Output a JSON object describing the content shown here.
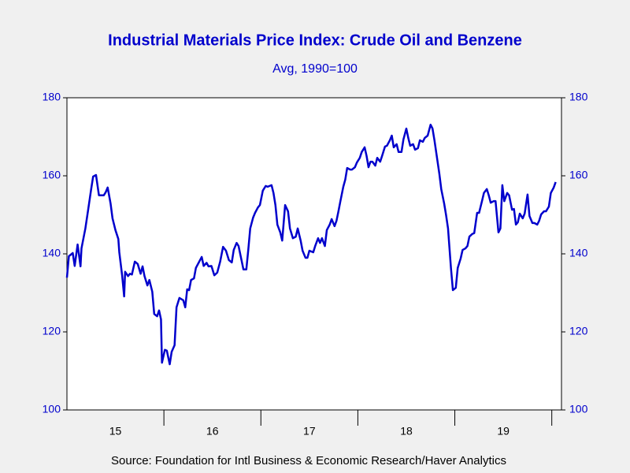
{
  "chart_data": {
    "type": "line",
    "title": "Industrial Materials Price Index: Crude Oil and Benzene",
    "subtitle": "Avg, 1990=100",
    "source": "Source:  Foundation for Intl Business & Economic Research/Haver Analytics",
    "xlim": [
      15,
      20.1
    ],
    "xticks": [
      {
        "value": 15.5,
        "label": "15"
      },
      {
        "value": 16.5,
        "label": "16"
      },
      {
        "value": 17.5,
        "label": "17"
      },
      {
        "value": 18.5,
        "label": "18"
      },
      {
        "value": 19.5,
        "label": "19"
      }
    ],
    "x_boundary_ticks": [
      16,
      17,
      18,
      19,
      20
    ],
    "ylim": [
      100,
      180
    ],
    "yticks": [
      100,
      120,
      140,
      160,
      180
    ],
    "mirror_y_axis": true,
    "x": [
      15.0,
      15.02,
      15.06,
      15.08,
      15.11,
      15.14,
      15.15,
      15.19,
      15.22,
      15.25,
      15.27,
      15.3,
      15.33,
      15.35,
      15.38,
      15.4,
      15.42,
      15.45,
      15.47,
      15.5,
      15.53,
      15.54,
      15.57,
      15.59,
      15.6,
      15.63,
      15.65,
      15.67,
      15.7,
      15.73,
      15.76,
      15.78,
      15.8,
      15.83,
      15.85,
      15.88,
      15.9,
      15.93,
      15.95,
      15.97,
      15.98,
      16.01,
      16.03,
      16.06,
      16.08,
      16.11,
      16.13,
      16.16,
      16.2,
      16.22,
      16.24,
      16.26,
      16.28,
      16.31,
      16.33,
      16.36,
      16.39,
      16.41,
      16.44,
      16.46,
      16.49,
      16.52,
      16.55,
      16.58,
      16.61,
      16.64,
      16.67,
      16.7,
      16.72,
      16.75,
      16.77,
      16.8,
      16.82,
      16.85,
      16.87,
      16.89,
      16.92,
      16.94,
      16.97,
      16.99,
      17.02,
      17.05,
      17.07,
      17.11,
      17.13,
      17.15,
      17.17,
      17.2,
      17.22,
      17.25,
      17.28,
      17.3,
      17.33,
      17.36,
      17.38,
      17.41,
      17.43,
      17.46,
      17.48,
      17.5,
      17.54,
      17.56,
      17.59,
      17.61,
      17.63,
      17.66,
      17.68,
      17.71,
      17.73,
      17.76,
      17.78,
      17.8,
      17.82,
      17.85,
      17.87,
      17.89,
      17.92,
      17.94,
      17.97,
      17.99,
      18.02,
      18.04,
      18.07,
      18.09,
      18.11,
      18.13,
      18.15,
      18.18,
      18.2,
      18.23,
      18.25,
      18.28,
      18.3,
      18.33,
      18.35,
      18.37,
      18.4,
      18.42,
      18.45,
      18.47,
      18.5,
      18.52,
      18.54,
      18.57,
      18.59,
      18.62,
      18.64,
      18.67,
      18.69,
      18.72,
      18.75,
      18.77,
      18.79,
      18.81,
      18.84,
      18.86,
      18.89,
      18.91,
      18.93,
      18.96,
      18.98,
      19.01,
      19.03,
      19.06,
      19.08,
      19.11,
      19.13,
      19.15,
      19.18,
      19.2,
      19.23,
      19.25,
      19.28,
      19.3,
      19.33,
      19.35,
      19.37,
      19.4,
      19.42,
      19.45,
      19.47,
      19.49,
      19.51,
      19.54,
      19.56,
      19.59,
      19.61,
      19.63,
      19.65,
      19.67,
      19.7,
      19.72,
      19.75,
      19.77,
      19.8,
      19.82,
      19.85,
      19.87,
      19.89,
      19.92,
      19.94,
      19.97,
      19.99,
      20.02,
      20.04
    ],
    "series": [
      {
        "color": "#0000cc",
        "values": [
          133.9,
          139.4,
          140.2,
          136.9,
          142.4,
          136.8,
          141.4,
          146.5,
          151.5,
          156.6,
          159.8,
          160.2,
          155.0,
          155.0,
          155.0,
          155.8,
          157.0,
          152.9,
          149.1,
          146.1,
          143.8,
          140.4,
          134.3,
          129.1,
          135.4,
          134.3,
          134.9,
          134.7,
          138.0,
          137.4,
          134.9,
          136.8,
          134.3,
          131.9,
          133.3,
          130.3,
          124.6,
          124.0,
          125.5,
          123.2,
          112.1,
          115.4,
          115.2,
          111.7,
          114.9,
          116.6,
          126.3,
          128.7,
          128.1,
          126.3,
          130.9,
          130.7,
          133.3,
          133.7,
          136.4,
          137.8,
          139.2,
          136.9,
          137.7,
          136.8,
          136.9,
          134.5,
          135.2,
          138.0,
          141.8,
          140.8,
          138.4,
          137.8,
          141.0,
          142.8,
          142.0,
          138.4,
          136.0,
          136.0,
          141.0,
          146.5,
          149.3,
          150.5,
          151.9,
          152.5,
          156.2,
          157.4,
          157.2,
          157.6,
          155.6,
          152.5,
          147.5,
          145.5,
          143.4,
          152.5,
          150.9,
          146.5,
          144.0,
          144.4,
          146.5,
          143.4,
          140.8,
          139.0,
          139.0,
          140.8,
          140.4,
          142.0,
          144.0,
          142.8,
          144.0,
          142.0,
          146.1,
          147.5,
          148.9,
          147.1,
          148.5,
          150.9,
          153.5,
          157.2,
          159.0,
          162.0,
          161.6,
          161.6,
          162.2,
          163.4,
          164.6,
          166.1,
          167.3,
          165.1,
          162.2,
          163.6,
          163.6,
          162.6,
          164.6,
          163.6,
          165.1,
          167.5,
          167.7,
          169.1,
          170.3,
          167.3,
          168.1,
          166.1,
          166.1,
          169.3,
          172.1,
          169.7,
          167.7,
          168.1,
          166.7,
          167.1,
          169.1,
          168.7,
          169.7,
          170.3,
          173.1,
          172.1,
          169.1,
          165.7,
          160.6,
          156.6,
          152.9,
          149.9,
          146.5,
          136.4,
          130.7,
          131.3,
          136.4,
          138.8,
          141.0,
          141.4,
          142.0,
          144.4,
          145.1,
          145.3,
          150.5,
          150.5,
          153.5,
          155.6,
          156.6,
          155.0,
          153.1,
          153.5,
          153.5,
          145.5,
          146.5,
          157.6,
          153.5,
          155.6,
          155.0,
          151.3,
          151.5,
          147.5,
          148.1,
          150.3,
          149.1,
          150.3,
          155.2,
          149.7,
          147.9,
          147.9,
          147.5,
          148.5,
          150.1,
          150.9,
          150.9,
          152.1,
          155.6,
          157.0,
          158.4
        ]
      }
    ]
  }
}
